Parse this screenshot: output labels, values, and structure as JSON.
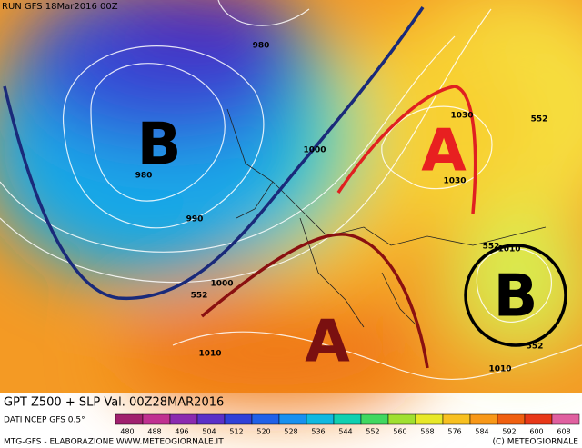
{
  "header": {
    "run": "RUN GFS 18Mar2016 00Z"
  },
  "map": {
    "pressure_centers": [
      {
        "label": "B"
      },
      {
        "label": "A"
      },
      {
        "label": "A"
      },
      {
        "label": "B"
      }
    ],
    "contour_labels": [
      "980",
      "980",
      "990",
      "1000",
      "1000",
      "552",
      "1030",
      "1030",
      "552",
      "552",
      "1010",
      "552",
      "1010",
      "1010"
    ]
  },
  "footer": {
    "title": "GPT Z500 + SLP Val. 00Z28MAR2016",
    "source": "DATI NCEP GFS 0.5°",
    "credit": "MTG-GFS - ELABORAZIONE WWW.METEOGIORNALE.IT",
    "copyright": "(C) METEOGIORNALE"
  },
  "colorbar": {
    "labels": [
      "480",
      "488",
      "496",
      "504",
      "512",
      "520",
      "528",
      "536",
      "544",
      "552",
      "560",
      "568",
      "576",
      "584",
      "592",
      "600",
      "608"
    ],
    "colors": [
      "#a0206e",
      "#c03090",
      "#8a2ab0",
      "#5a30c8",
      "#3040d8",
      "#2060e8",
      "#1890f0",
      "#10b8e0",
      "#10d0b0",
      "#40d860",
      "#a0e030",
      "#e8e828",
      "#f8c020",
      "#f89818",
      "#f06010",
      "#e83818",
      "#e060a0"
    ]
  }
}
